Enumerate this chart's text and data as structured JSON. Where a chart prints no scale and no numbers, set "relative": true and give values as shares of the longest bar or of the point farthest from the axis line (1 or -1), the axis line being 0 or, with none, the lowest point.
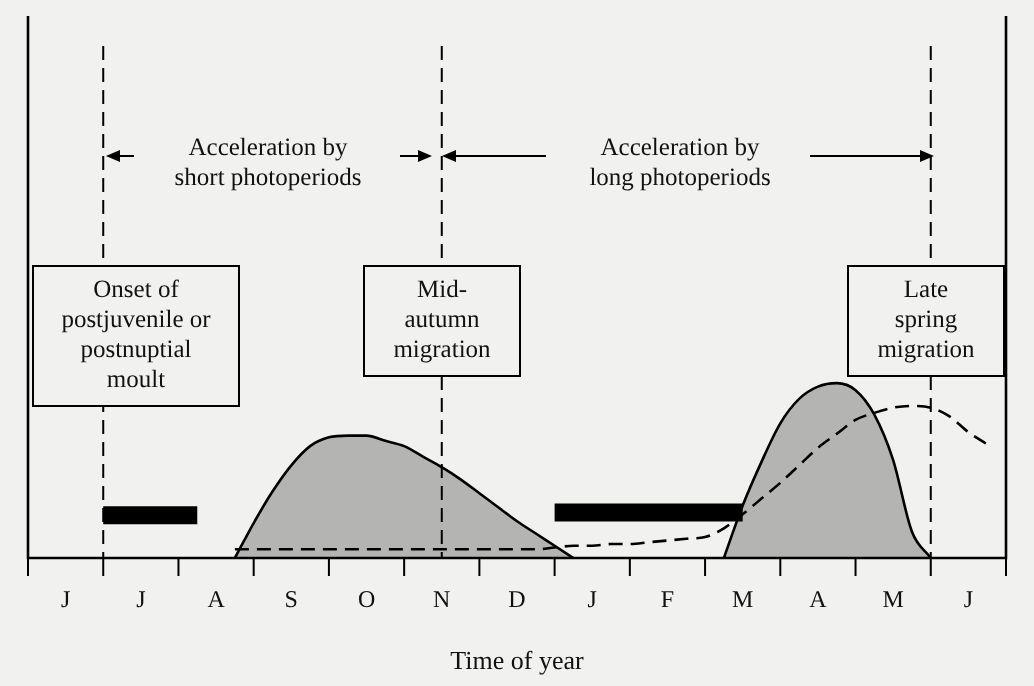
{
  "chart_data": {
    "type": "area",
    "relative": true,
    "xlabel": "Time of year",
    "categories": [
      null,
      null,
      "J",
      null,
      null,
      null,
      "J",
      null,
      null,
      null,
      "A",
      null,
      null,
      null,
      "S",
      null,
      null,
      null,
      "O",
      null,
      null,
      null,
      "N",
      null,
      null,
      null,
      "D",
      null,
      null,
      null,
      "J",
      null,
      null,
      null,
      "F",
      null,
      null,
      null,
      "M",
      null,
      null,
      null,
      "A",
      null,
      null,
      null,
      "M",
      null,
      null,
      null,
      "J",
      null,
      null
    ],
    "series": [
      {
        "color": "#000000",
        "values": [
          null,
          null,
          null,
          null,
          null,
          null,
          null,
          null,
          null,
          null,
          null,
          0,
          0.2,
          0.38,
          0.53,
          0.64,
          0.69,
          0.7,
          0.7,
          0.67,
          0.64,
          0.58,
          0.52,
          0.45,
          0.37,
          0.29,
          0.21,
          0.14,
          0.07,
          0,
          null,
          null,
          null,
          null,
          null,
          null,
          null,
          null,
          null,
          null,
          null,
          null,
          null,
          null,
          null,
          null,
          null,
          null,
          null,
          null,
          null,
          null,
          null
        ]
      },
      {
        "color": "#000000",
        "values": [
          null,
          null,
          null,
          null,
          null,
          null,
          null,
          null,
          null,
          null,
          null,
          null,
          null,
          null,
          null,
          null,
          null,
          null,
          null,
          null,
          null,
          null,
          null,
          null,
          null,
          null,
          null,
          null,
          null,
          null,
          null,
          null,
          null,
          null,
          null,
          null,
          null,
          0,
          0.3,
          0.55,
          0.77,
          0.91,
          0.98,
          1.0,
          0.96,
          0.82,
          0.56,
          0.15,
          0,
          null,
          null,
          null,
          null
        ]
      },
      {
        "type": "line",
        "line_style": "dashed",
        "color": "#000000",
        "values": [
          null,
          null,
          null,
          null,
          null,
          null,
          null,
          null,
          null,
          null,
          null,
          0.05,
          0.05,
          0.05,
          0.05,
          0.05,
          0.05,
          0.05,
          0.05,
          0.05,
          0.05,
          0.05,
          0.05,
          0.05,
          0.05,
          0.05,
          0.05,
          0.05,
          0.06,
          0.07,
          0.07,
          0.08,
          0.08,
          0.09,
          0.1,
          0.11,
          0.12,
          0.17,
          0.25,
          0.34,
          0.43,
          0.53,
          0.63,
          0.71,
          0.79,
          0.83,
          0.86,
          0.87,
          0.86,
          0.81,
          0.72,
          0.65,
          null
        ]
      },
      {
        "type": "line",
        "color": "#000000",
        "values": [
          null,
          null,
          null,
          null,
          0.245,
          0.245,
          0.245,
          0.245,
          0.245,
          0.245,
          null,
          null,
          null,
          null,
          null,
          null,
          null,
          null,
          null,
          null,
          null,
          null,
          null,
          null,
          null,
          null,
          null,
          null,
          null,
          null,
          null,
          null,
          null,
          null,
          null,
          null,
          null,
          null,
          null,
          null,
          null,
          null,
          null,
          null,
          null,
          null,
          null,
          null,
          null,
          null,
          null,
          null,
          null
        ]
      },
      {
        "type": "line",
        "color": "#000000",
        "values": [
          null,
          null,
          null,
          null,
          null,
          null,
          null,
          null,
          null,
          null,
          null,
          null,
          null,
          null,
          null,
          null,
          null,
          null,
          null,
          null,
          null,
          null,
          null,
          null,
          null,
          null,
          null,
          null,
          0.26,
          0.26,
          0.26,
          0.26,
          0.26,
          0.26,
          0.26,
          0.26,
          0.26,
          0.26,
          0.26,
          null,
          null,
          null,
          null,
          null,
          null,
          null,
          null,
          null,
          null,
          null,
          null,
          null,
          null
        ]
      }
    ],
    "annotations": [
      "Acceleration by\nshort photoperiods",
      "Acceleration by\nlong photoperiods",
      "Onset of\npostjuvenile or\npostnuptial\nmoult",
      "Mid-\nautumn\nmigration",
      "Late\nspring\nmigration"
    ],
    "marker": "none",
    "grid": false,
    "legend": false
  }
}
